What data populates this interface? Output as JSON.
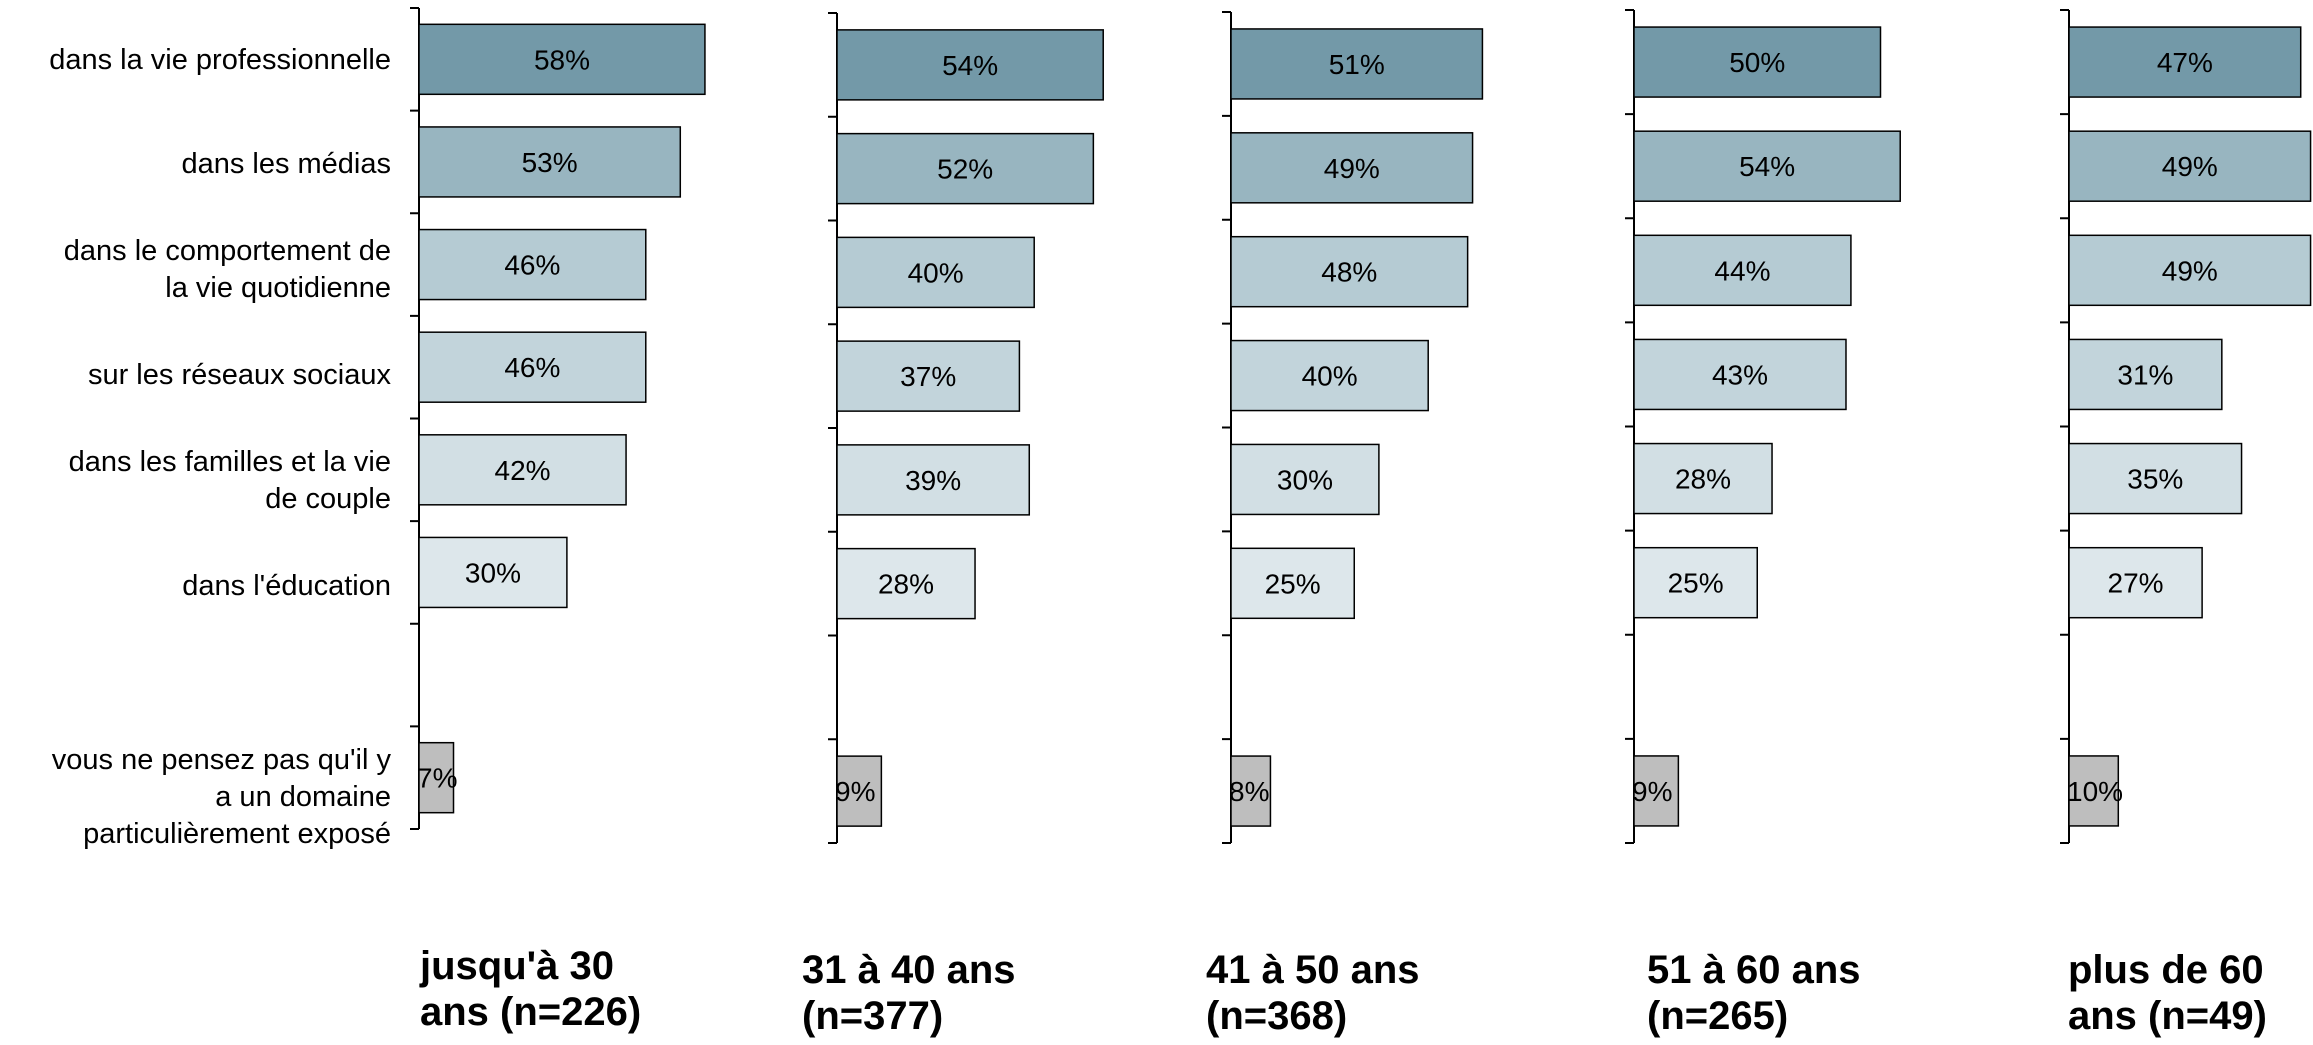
{
  "chart_data": {
    "type": "bar",
    "orientation": "horizontal",
    "categories": [
      "dans la vie professionnelle",
      "dans les médias",
      "dans le comportement de\nla vie quotidienne",
      "sur les réseaux sociaux",
      "dans les familles et la vie\nde couple",
      "dans l'éducation",
      "",
      "vous ne pensez pas qu'il y\na un domaine\nparticulièrement exposé"
    ],
    "value_format": "percent",
    "colors": [
      "#7399a8",
      "#98b5c0",
      "#b5cbd3",
      "#c2d4db",
      "#d2dfe4",
      "#dde7eb",
      "#ffffff",
      "#bebebe"
    ],
    "panels": [
      {
        "name": "jusqu'à 30\nans (n=226)",
        "values": [
          58,
          53,
          46,
          46,
          42,
          30,
          null,
          7
        ]
      },
      {
        "name": "31 à 40 ans\n(n=377)",
        "values": [
          54,
          52,
          40,
          37,
          39,
          28,
          null,
          9
        ]
      },
      {
        "name": "41 à 50 ans\n(n=368)",
        "values": [
          51,
          49,
          48,
          40,
          30,
          25,
          null,
          8
        ]
      },
      {
        "name": "51 à 60 ans\n(n=265)",
        "values": [
          50,
          54,
          44,
          43,
          28,
          25,
          null,
          9
        ]
      },
      {
        "name": "plus de 60\nans (n=49)",
        "values": [
          47,
          49,
          49,
          31,
          35,
          27,
          null,
          10
        ]
      }
    ],
    "xlim": [
      0,
      60
    ],
    "grid": false,
    "legend": "none"
  }
}
